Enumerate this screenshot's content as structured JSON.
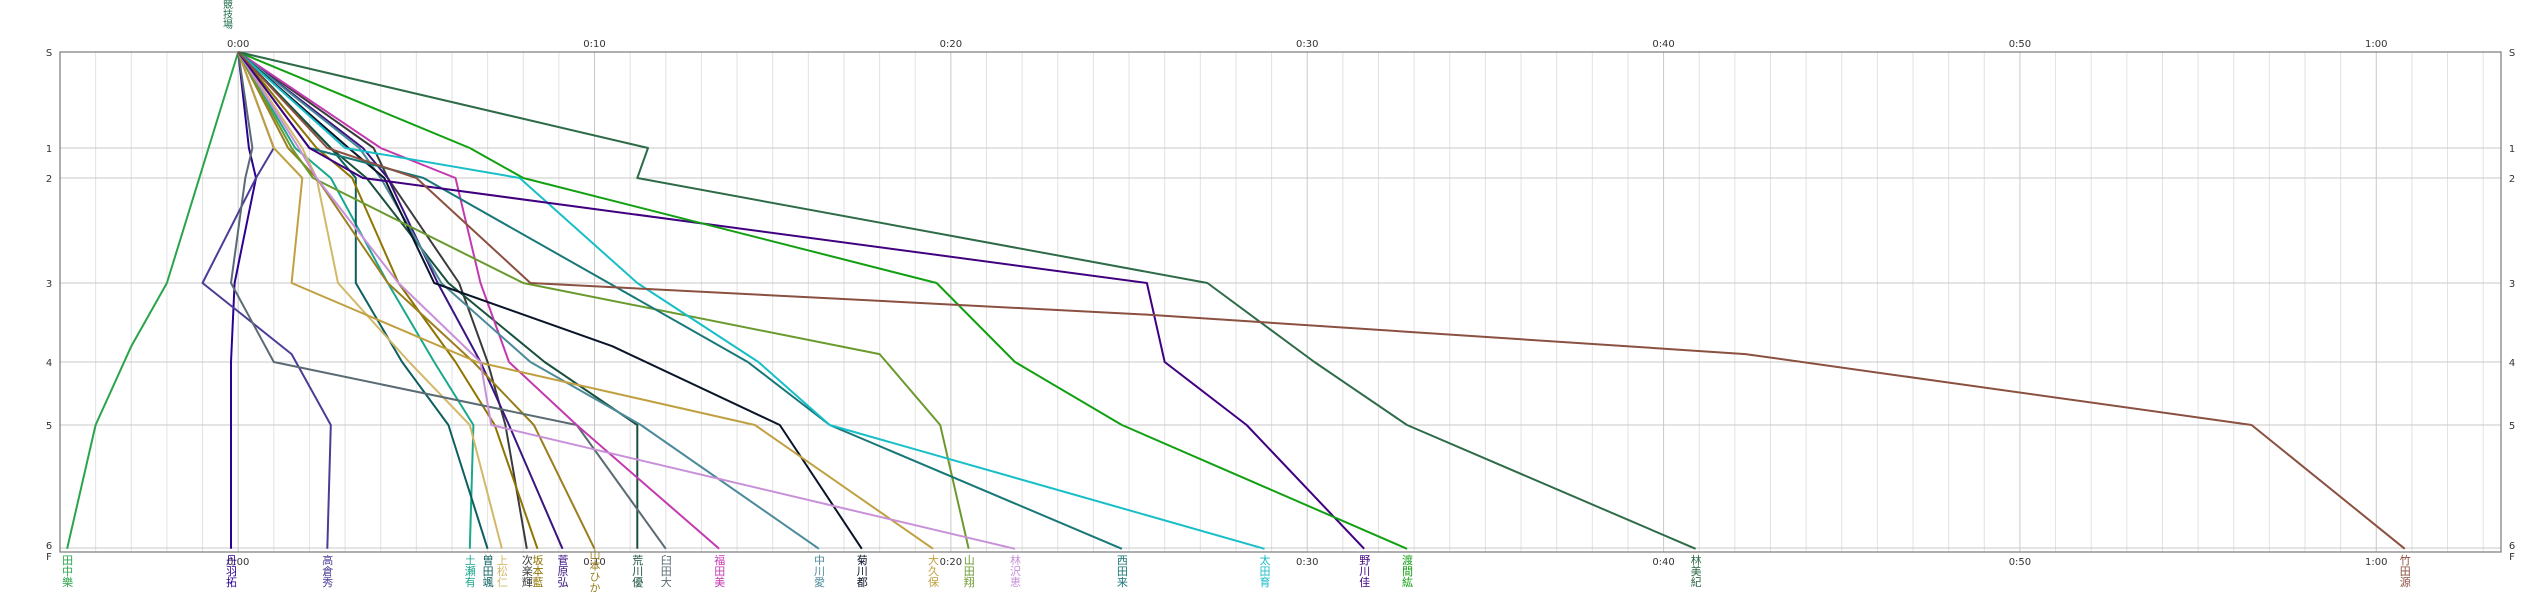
{
  "chart_data": {
    "type": "line",
    "top_label": "陸上競技場",
    "x_unit": "minutes",
    "xlim": [
      -5,
      63.5
    ],
    "x_ticks": [
      {
        "value": 0,
        "label": "0:00"
      },
      {
        "value": 10,
        "label": "0:10"
      },
      {
        "value": 20,
        "label": "0:20"
      },
      {
        "value": 30,
        "label": "0:30"
      },
      {
        "value": 40,
        "label": "0:40"
      },
      {
        "value": 50,
        "label": "0:50"
      },
      {
        "value": 60,
        "label": "1:00"
      }
    ],
    "y_levels": [
      "S",
      "1",
      "2",
      "3",
      "4",
      "5",
      "6",
      "F"
    ],
    "grid": true,
    "series": [
      {
        "label": "田中樂",
        "color": "#2aa44a",
        "points": [
          [
            0,
            0
          ],
          [
            -2,
            3
          ],
          [
            -3,
            3.8
          ],
          [
            -4,
            5
          ],
          [
            -4.8,
            6.2
          ]
        ]
      },
      {
        "label": "丹羽拓",
        "color": "#2c0090",
        "points": [
          [
            0,
            0
          ],
          [
            0.3,
            1
          ],
          [
            0.5,
            2
          ],
          [
            -0.1,
            3
          ],
          [
            -0.2,
            4
          ],
          [
            -0.2,
            5
          ],
          [
            -0.2,
            6.2
          ]
        ]
      },
      {
        "label": "高倉秀",
        "color": "#4b3c96",
        "points": [
          [
            0,
            0
          ],
          [
            1,
            1
          ],
          [
            0.5,
            2
          ],
          [
            -1,
            3
          ],
          [
            1.5,
            3.9
          ],
          [
            2.6,
            5
          ],
          [
            2.5,
            6.2
          ]
        ]
      },
      {
        "label": "土瀬有",
        "color": "#1aa88c",
        "points": [
          [
            0,
            0
          ],
          [
            1.6,
            1
          ],
          [
            2.6,
            2
          ],
          [
            4.2,
            3
          ],
          [
            5.5,
            4
          ],
          [
            6.6,
            5
          ],
          [
            6.5,
            6.2
          ]
        ]
      },
      {
        "label": "曽田颯",
        "color": "#0c5f5f",
        "points": [
          [
            0,
            0
          ],
          [
            2.6,
            1
          ],
          [
            3.3,
            2
          ],
          [
            3.3,
            3
          ],
          [
            4.6,
            4
          ],
          [
            5.9,
            5
          ],
          [
            7,
            6.2
          ]
        ]
      },
      {
        "label": "上松仁",
        "color": "#d2b86a",
        "points": [
          [
            0,
            0
          ],
          [
            1.8,
            1
          ],
          [
            2.2,
            2
          ],
          [
            2.8,
            3
          ],
          [
            4.8,
            4
          ],
          [
            6.5,
            5
          ],
          [
            7.4,
            6.2
          ]
        ]
      },
      {
        "label": "次楽輝",
        "color": "#3b3b3b",
        "points": [
          [
            0,
            0
          ],
          [
            3.8,
            1
          ],
          [
            4.2,
            2
          ],
          [
            6.2,
            3
          ],
          [
            7,
            4
          ],
          [
            7.5,
            5
          ],
          [
            8.1,
            6.2
          ]
        ]
      },
      {
        "label": "坂本藍",
        "color": "#8f7400",
        "points": [
          [
            0,
            0
          ],
          [
            2.2,
            1
          ],
          [
            3.2,
            2
          ],
          [
            4.5,
            3
          ],
          [
            6.1,
            4
          ],
          [
            7.2,
            5
          ],
          [
            8.4,
            6.2
          ]
        ]
      },
      {
        "label": "菅原弘",
        "color": "#3a1480",
        "points": [
          [
            0,
            0
          ],
          [
            3.5,
            1
          ],
          [
            4.2,
            2
          ],
          [
            5.6,
            3
          ],
          [
            6.8,
            4
          ],
          [
            7.6,
            5
          ],
          [
            9.1,
            6.2
          ]
        ]
      },
      {
        "label": "山本ひか",
        "color": "#9b7e20",
        "points": [
          [
            0,
            0
          ],
          [
            1.4,
            1
          ],
          [
            2.2,
            2
          ],
          [
            4.2,
            3
          ],
          [
            6.6,
            4
          ],
          [
            8.3,
            5
          ],
          [
            10,
            6.2
          ]
        ]
      },
      {
        "label": "荒川優",
        "color": "#18503c",
        "points": [
          [
            0,
            0
          ],
          [
            2.6,
            1
          ],
          [
            3.6,
            2
          ],
          [
            5.9,
            3
          ],
          [
            8.6,
            4
          ],
          [
            11.2,
            5
          ],
          [
            11.2,
            6.2
          ]
        ]
      },
      {
        "label": "臼田大",
        "color": "#5a6b73",
        "points": [
          [
            0,
            0
          ],
          [
            0.4,
            1
          ],
          [
            0.2,
            2
          ],
          [
            -0.2,
            3
          ],
          [
            1,
            4
          ],
          [
            9.5,
            5
          ],
          [
            12,
            6.2
          ]
        ]
      },
      {
        "label": "福田美",
        "color": "#c33ab0",
        "points": [
          [
            0,
            0
          ],
          [
            4,
            1
          ],
          [
            6.1,
            2
          ],
          [
            6.8,
            3
          ],
          [
            7.6,
            4
          ],
          [
            9.5,
            5
          ],
          [
            13.5,
            6.2
          ]
        ]
      },
      {
        "label": "中川愛",
        "color": "#4b8a9a",
        "points": [
          [
            0,
            0
          ],
          [
            3.4,
            1
          ],
          [
            4,
            2
          ],
          [
            5.7,
            3
          ],
          [
            8.2,
            4
          ],
          [
            11.3,
            5
          ],
          [
            16.3,
            6.2
          ]
        ]
      },
      {
        "label": "菊川都",
        "color": "#0a1428",
        "points": [
          [
            0,
            0
          ],
          [
            3.1,
            1
          ],
          [
            4.1,
            2
          ],
          [
            5.5,
            3
          ],
          [
            10.5,
            3.8
          ],
          [
            15.2,
            5
          ],
          [
            17.5,
            6.2
          ]
        ]
      },
      {
        "label": "大久保",
        "color": "#c0a040",
        "points": [
          [
            0,
            0
          ],
          [
            1,
            1
          ],
          [
            1.8,
            2
          ],
          [
            1.5,
            3
          ],
          [
            6.7,
            4
          ],
          [
            14.5,
            5
          ],
          [
            19.5,
            6.2
          ]
        ]
      },
      {
        "label": "山田翔",
        "color": "#6a9a2e",
        "points": [
          [
            0,
            0
          ],
          [
            1.5,
            1
          ],
          [
            2.1,
            2
          ],
          [
            8,
            3
          ],
          [
            18,
            3.9
          ],
          [
            19.7,
            5
          ],
          [
            20.5,
            6.2
          ]
        ]
      },
      {
        "label": "林沢恵",
        "color": "#c890d8",
        "points": [
          [
            0,
            0
          ],
          [
            1.7,
            1
          ],
          [
            2.2,
            2
          ],
          [
            4.5,
            3
          ],
          [
            6.8,
            4
          ],
          [
            7.1,
            5
          ],
          [
            21.8,
            6.2
          ]
        ]
      },
      {
        "label": "西田来",
        "color": "#187878",
        "points": [
          [
            0,
            0
          ],
          [
            2,
            1
          ],
          [
            5.2,
            2
          ],
          [
            10.4,
            3
          ],
          [
            14.3,
            4
          ],
          [
            16.6,
            5
          ],
          [
            24.8,
            6.2
          ]
        ]
      },
      {
        "label": "太田育",
        "color": "#18bec8",
        "points": [
          [
            0,
            0
          ],
          [
            3,
            1
          ],
          [
            7.9,
            2
          ],
          [
            11.2,
            3
          ],
          [
            14.6,
            4
          ],
          [
            16.6,
            5
          ],
          [
            28.8,
            6.2
          ]
        ]
      },
      {
        "label": "野川佳",
        "color": "#400080",
        "points": [
          [
            0,
            0
          ],
          [
            2,
            1
          ],
          [
            3.5,
            2
          ],
          [
            25.5,
            3
          ],
          [
            26,
            4
          ],
          [
            28.3,
            5
          ],
          [
            31.6,
            6.2
          ]
        ]
      },
      {
        "label": "渡間紘",
        "color": "#12a012",
        "points": [
          [
            0,
            0
          ],
          [
            6.5,
            1
          ],
          [
            8,
            2
          ],
          [
            19.6,
            3
          ],
          [
            21.8,
            4
          ],
          [
            24.8,
            5
          ],
          [
            32.8,
            6.2
          ]
        ]
      },
      {
        "label": "林美紀",
        "color": "#2e6b48",
        "points": [
          [
            0,
            0
          ],
          [
            11.5,
            1
          ],
          [
            11.2,
            2
          ],
          [
            27.2,
            3
          ],
          [
            30.2,
            4
          ],
          [
            32.8,
            5
          ],
          [
            40.9,
            6.2
          ]
        ]
      },
      {
        "label": "竹田源",
        "color": "#8a5040",
        "points": [
          [
            0,
            0
          ],
          [
            2.5,
            1
          ],
          [
            5,
            2
          ],
          [
            8.2,
            3
          ],
          [
            25.5,
            3.4
          ],
          [
            42.3,
            3.9
          ],
          [
            56.5,
            5
          ],
          [
            60.8,
            6.2
          ]
        ]
      }
    ]
  }
}
